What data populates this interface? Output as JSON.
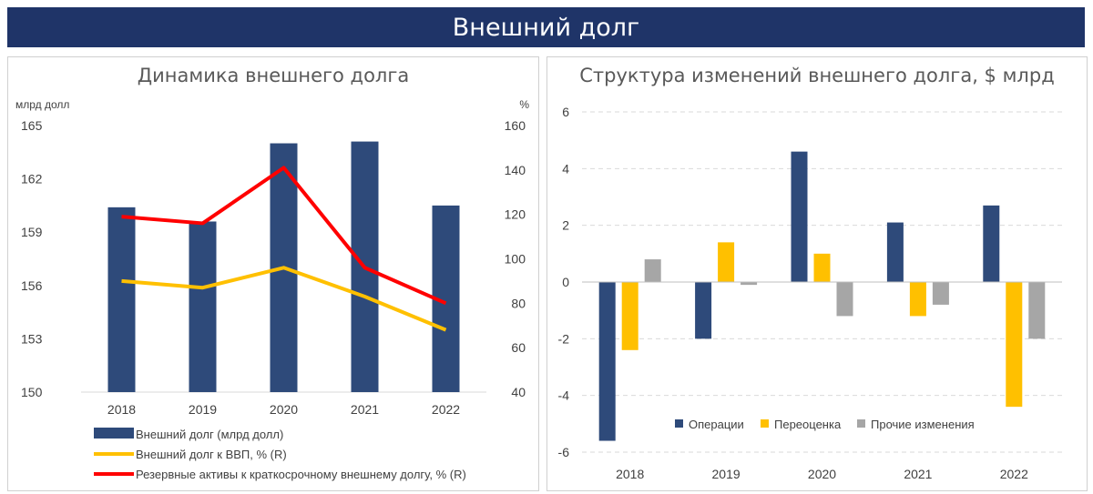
{
  "header": {
    "title": "Внешний долг"
  },
  "colors": {
    "navy": "#2e4a7a",
    "yellow": "#ffc000",
    "red": "#ff0000",
    "gray": "#a6a6a6",
    "banner": "#1f3468"
  },
  "left": {
    "title": "Динамика внешнего долга"
  },
  "right": {
    "title": "Структура изменений внешнего долга, $ млрд"
  },
  "chart_data": [
    {
      "type": "bar",
      "title": "Динамика внешнего долга",
      "categories": [
        "2018",
        "2019",
        "2020",
        "2021",
        "2022"
      ],
      "ylabel_left": "млрд долл",
      "ylabel_right": "%",
      "ylim_left": [
        150,
        165
      ],
      "yticks_left": [
        "150",
        "153",
        "156",
        "159",
        "162",
        "165"
      ],
      "ylim_right": [
        40,
        160
      ],
      "yticks_right": [
        "40",
        "60",
        "80",
        "100",
        "120",
        "140",
        "160"
      ],
      "grid": false,
      "legend_position": "bottom",
      "series": [
        {
          "name": "Внешний долг (млрд долл)",
          "type": "bar",
          "axis": "left",
          "color": "#2e4a7a",
          "values": [
            160.4,
            159.6,
            164.0,
            164.1,
            160.5
          ]
        },
        {
          "name": "Внешний долг к ВВП, % (R)",
          "type": "line",
          "axis": "right",
          "color": "#ffc000",
          "values": [
            90,
            87,
            96,
            83,
            68
          ]
        },
        {
          "name": "Резервные активы к краткосрочному внешнему долгу, % (R)",
          "type": "line",
          "axis": "right",
          "color": "#ff0000",
          "values": [
            119,
            116,
            141,
            96,
            80
          ]
        }
      ]
    },
    {
      "type": "bar",
      "title": "Структура изменений внешнего долга, $ млрд",
      "categories": [
        "2018",
        "2019",
        "2020",
        "2021",
        "2022"
      ],
      "ylim": [
        -6,
        6
      ],
      "yticks": [
        "-6",
        "-4",
        "-2",
        "0",
        "2",
        "4",
        "6"
      ],
      "grid": true,
      "legend_position": "bottom-inside",
      "series": [
        {
          "name": "Операции",
          "color": "#2e4a7a",
          "values": [
            -5.6,
            -2.0,
            4.6,
            2.1,
            2.7
          ]
        },
        {
          "name": "Переоценка",
          "color": "#ffc000",
          "values": [
            -2.4,
            1.4,
            1.0,
            -1.2,
            -4.4
          ]
        },
        {
          "name": "Прочие изменения",
          "color": "#a6a6a6",
          "values": [
            0.8,
            -0.1,
            -1.2,
            -0.8,
            -2.0
          ]
        }
      ]
    }
  ]
}
